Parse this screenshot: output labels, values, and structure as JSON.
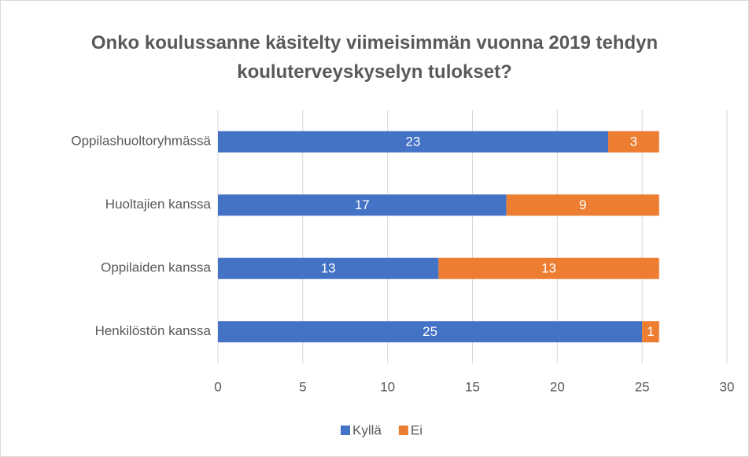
{
  "chart_data": {
    "type": "stacked-bar-horizontal",
    "title": "Onko koulussanne käsitelty viimeisimmän vuonna 2019 tehdyn kouluterveyskyselyn tulokset?",
    "categories": [
      "Oppilashuoltoryhmässä",
      "Huoltajien kanssa",
      "Oppilaiden kanssa",
      "Henkilöstön kanssa"
    ],
    "series": [
      {
        "name": "Kyllä",
        "color": "#4472c4",
        "values": [
          23,
          17,
          13,
          25
        ]
      },
      {
        "name": "Ei",
        "color": "#ed7d31",
        "values": [
          3,
          9,
          13,
          1
        ]
      }
    ],
    "xlim": [
      0,
      30
    ],
    "xticks": [
      0,
      5,
      10,
      15,
      20,
      25,
      30
    ],
    "grid": true,
    "legend": "bottom"
  }
}
